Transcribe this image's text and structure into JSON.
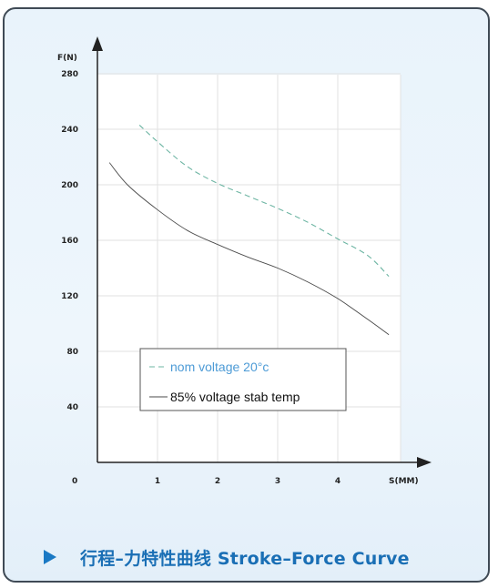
{
  "chart_data": {
    "type": "line",
    "xlabel": "S(MM)",
    "ylabel": "F(N)",
    "xlim": [
      0,
      4.85
    ],
    "ylim": [
      0,
      280
    ],
    "x_ticks": [
      1,
      2,
      3,
      4
    ],
    "y_ticks": [
      40,
      80,
      120,
      160,
      200,
      240,
      280
    ],
    "origin_label": "0",
    "grid": true,
    "legend_placement": "lower-center",
    "series": [
      {
        "name": "nom  voltage 20°c",
        "style": "dashed",
        "color": "#6db5a3",
        "x": [
          0.7,
          1.0,
          1.5,
          2.0,
          2.5,
          3.0,
          3.5,
          4.0,
          4.5,
          4.85
        ],
        "y": [
          243,
          231,
          213,
          201,
          192,
          183,
          173,
          161,
          149,
          134
        ]
      },
      {
        "name": "85%  voltage stab temp",
        "style": "solid",
        "color": "#4a4a4a",
        "x": [
          0.2,
          0.5,
          1.0,
          1.5,
          2.0,
          2.5,
          3.0,
          3.5,
          4.0,
          4.5,
          4.85
        ],
        "y": [
          216,
          200,
          182,
          167,
          157,
          148,
          140,
          130,
          118,
          103,
          92
        ]
      }
    ]
  },
  "caption": {
    "text": "行程–力特性曲线 Stroke–Force Curve",
    "color": "#1a6fb5"
  }
}
